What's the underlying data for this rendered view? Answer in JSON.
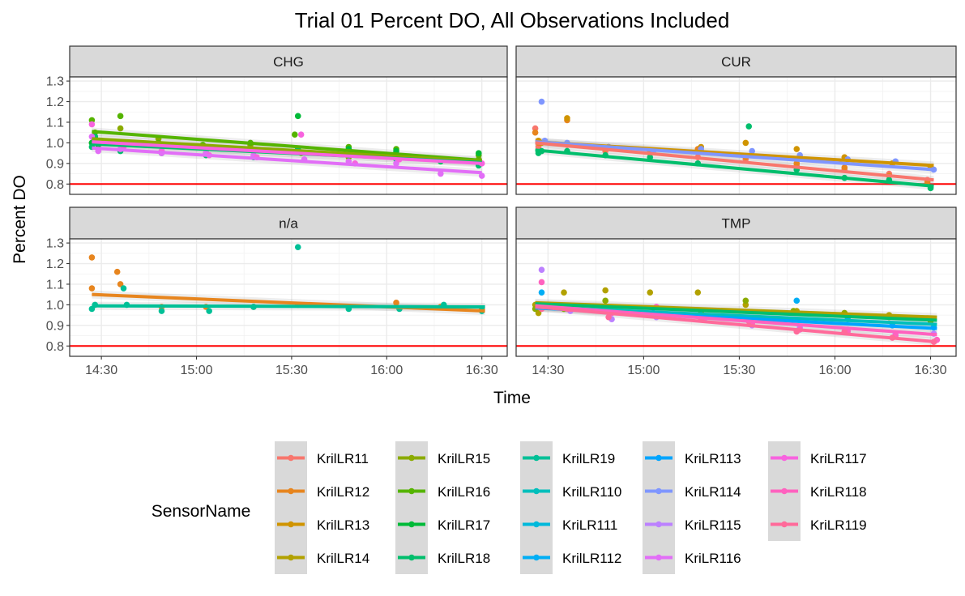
{
  "chart_data": {
    "type": "scatter",
    "title": "Trial 01 Percent DO, All Observations Included",
    "xlabel": "Time",
    "ylabel": "Percent DO",
    "x_unit": "minutes since 14:00",
    "x_ticks": [
      {
        "value": 30,
        "label": "14:30"
      },
      {
        "value": 60,
        "label": "15:00"
      },
      {
        "value": 90,
        "label": "15:30"
      },
      {
        "value": 120,
        "label": "16:00"
      },
      {
        "value": 150,
        "label": "16:30"
      }
    ],
    "y_ticks": [
      0.8,
      0.9,
      1.0,
      1.1,
      1.2,
      1.3
    ],
    "ylim": [
      0.75,
      1.32
    ],
    "xlim": [
      20,
      158
    ],
    "reference_line": {
      "y": 0.8,
      "color": "#ff0000"
    },
    "grid": true,
    "legend": {
      "title": "SensorName",
      "position": "bottom",
      "entries": [
        {
          "name": "KrilLR11",
          "color": "#F8766D"
        },
        {
          "name": "KrilLR12",
          "color": "#E7851E"
        },
        {
          "name": "KrilLR13",
          "color": "#D09400"
        },
        {
          "name": "KrilLR14",
          "color": "#B2A100"
        },
        {
          "name": "KrilLR15",
          "color": "#8BAB00"
        },
        {
          "name": "KrilLR16",
          "color": "#55B400"
        },
        {
          "name": "KrilLR17",
          "color": "#00BA38"
        },
        {
          "name": "KrilLR18",
          "color": "#00BE6C"
        },
        {
          "name": "KrilLR19",
          "color": "#00C097"
        },
        {
          "name": "KrilLR110",
          "color": "#00BFBC"
        },
        {
          "name": "KriLR111",
          "color": "#00B9DB"
        },
        {
          "name": "KrilLR112",
          "color": "#00AEF5"
        },
        {
          "name": "KriLR113",
          "color": "#00A5FF"
        },
        {
          "name": "KriLR114",
          "color": "#7F96FF"
        },
        {
          "name": "KriLR115",
          "color": "#BC81FF"
        },
        {
          "name": "KriLR116",
          "color": "#E26EF7"
        },
        {
          "name": "KriLR117",
          "color": "#F863DF"
        },
        {
          "name": "KriLR118",
          "color": "#FF62BF"
        },
        {
          "name": "KriLR119",
          "color": "#FF6A9A"
        }
      ]
    },
    "panels": [
      {
        "label": "CHG",
        "series": [
          {
            "color": "#8BAB00",
            "x": [
              27,
              28,
              36,
              48,
              62,
              77,
              93,
              108,
              123,
              137,
              149
            ],
            "y": [
              1.0,
              1.02,
              1.07,
              1.02,
              0.98,
              0.99,
              0.95,
              0.93,
              0.93,
              0.91,
              0.92
            ]
          },
          {
            "color": "#55B400",
            "x": [
              27,
              28,
              36,
              48,
              62,
              77,
              91,
              108,
              123,
              137,
              149
            ],
            "y": [
              1.11,
              1.05,
              1.13,
              1.0,
              0.99,
              1.0,
              1.04,
              0.98,
              0.97,
              0.92,
              0.94
            ]
          },
          {
            "color": "#00BA38",
            "x": [
              27,
              29,
              36,
              49,
              63,
              78,
              92,
              108,
              123,
              137,
              149
            ],
            "y": [
              1.0,
              0.99,
              1.0,
              0.96,
              0.95,
              0.96,
              1.13,
              0.97,
              0.96,
              0.92,
              0.95
            ]
          },
          {
            "color": "#00BE6C",
            "x": [
              27,
              28,
              36,
              49,
              63,
              78,
              92,
              108,
              123,
              137,
              149
            ],
            "y": [
              0.98,
              1.03,
              0.96,
              0.95,
              0.94,
              0.93,
              0.97,
              0.94,
              0.92,
              0.91,
              0.89
            ]
          },
          {
            "color": "#E26EF7",
            "x": [
              27,
              29,
              36,
              49,
              63,
              78,
              94,
              108,
              123,
              137,
              150
            ],
            "y": [
              1.03,
              0.96,
              0.97,
              0.95,
              0.95,
              0.94,
              0.92,
              0.91,
              0.9,
              0.85,
              0.84
            ]
          },
          {
            "color": "#F863DF",
            "x": [
              27,
              29,
              37,
              49,
              64,
              79,
              93,
              110,
              124,
              138,
              150
            ],
            "y": [
              1.09,
              1.0,
              0.98,
              0.96,
              0.94,
              0.93,
              1.04,
              0.9,
              0.92,
              0.92,
              0.9
            ]
          }
        ],
        "fits": [
          {
            "color": "#55B400",
            "x1": 27,
            "y1": 1.055,
            "x2": 150,
            "y2": 0.915
          },
          {
            "color": "#8BAB00",
            "x1": 27,
            "y1": 1.02,
            "x2": 150,
            "y2": 0.91
          },
          {
            "color": "#00BE6C",
            "x1": 27,
            "y1": 0.995,
            "x2": 150,
            "y2": 0.905
          },
          {
            "color": "#E26EF7",
            "x1": 27,
            "y1": 0.975,
            "x2": 150,
            "y2": 0.855
          },
          {
            "color": "#F863DF",
            "x1": 27,
            "y1": 1.005,
            "x2": 150,
            "y2": 0.9
          }
        ]
      },
      {
        "label": "CUR",
        "series": [
          {
            "color": "#F8766D",
            "x": [
              26,
              27,
              36,
              48,
              62,
              77,
              92,
              108,
              123,
              137,
              149
            ],
            "y": [
              1.07,
              0.98,
              0.99,
              0.96,
              0.95,
              0.93,
              0.92,
              0.89,
              0.87,
              0.85,
              0.82
            ]
          },
          {
            "color": "#E7851E",
            "x": [
              26,
              27,
              36,
              48,
              62,
              77,
              92,
              108,
              123,
              137,
              149
            ],
            "y": [
              1.05,
              1.0,
              1.11,
              0.97,
              0.96,
              0.97,
              0.93,
              0.9,
              0.88,
              0.84,
              0.81
            ]
          },
          {
            "color": "#D09400",
            "x": [
              27,
              28,
              36,
              49,
              63,
              78,
              92,
              108,
              123,
              138,
              150
            ],
            "y": [
              1.01,
              1.0,
              1.12,
              0.98,
              0.96,
              0.98,
              1.0,
              0.97,
              0.93,
              0.9,
              0.88
            ]
          },
          {
            "color": "#00BE6C",
            "x": [
              27,
              28,
              36,
              48,
              62,
              77,
              93,
              108,
              123,
              137,
              150
            ],
            "y": [
              0.95,
              0.96,
              0.96,
              0.94,
              0.93,
              0.9,
              1.08,
              0.87,
              0.83,
              0.82,
              0.78
            ]
          },
          {
            "color": "#7F96FF",
            "x": [
              28,
              29,
              36,
              49,
              63,
              78,
              94,
              109,
              124,
              139,
              151
            ],
            "y": [
              1.2,
              1.01,
              1.0,
              0.98,
              0.96,
              0.97,
              0.96,
              0.94,
              0.92,
              0.91,
              0.87
            ]
          }
        ],
        "fits": [
          {
            "color": "#D09400",
            "x1": 26,
            "y1": 1.005,
            "x2": 151,
            "y2": 0.89
          },
          {
            "color": "#7F96FF",
            "x1": 26,
            "y1": 1.005,
            "x2": 151,
            "y2": 0.87
          },
          {
            "color": "#F8766D",
            "x1": 26,
            "y1": 1.0,
            "x2": 151,
            "y2": 0.82
          },
          {
            "color": "#00BE6C",
            "x1": 26,
            "y1": 0.965,
            "x2": 151,
            "y2": 0.79
          }
        ]
      },
      {
        "label": "n/a",
        "series": [
          {
            "color": "#E7851E",
            "x": [
              27,
              27,
              35,
              36,
              49,
              63,
              78,
              92,
              108,
              123,
              137,
              150
            ],
            "y": [
              1.23,
              1.08,
              1.16,
              1.1,
              0.99,
              0.99,
              0.99,
              1.0,
              0.99,
              1.01,
              0.99,
              0.98
            ]
          },
          {
            "color": "#00C097",
            "x": [
              27,
              28,
              37,
              38,
              49,
              64,
              78,
              92,
              108,
              124,
              138,
              150
            ],
            "y": [
              0.98,
              1.0,
              1.08,
              1.0,
              0.97,
              0.97,
              0.99,
              1.28,
              0.98,
              0.98,
              1.0,
              0.97
            ]
          }
        ],
        "fits": [
          {
            "color": "#E7851E",
            "x1": 27,
            "y1": 1.05,
            "x2": 151,
            "y2": 0.97
          },
          {
            "color": "#00C097",
            "x1": 27,
            "y1": 0.995,
            "x2": 151,
            "y2": 0.99
          }
        ]
      },
      {
        "label": "TMP",
        "series": [
          {
            "color": "#B2A100",
            "x": [
              26,
              27,
              35,
              48,
              62,
              77,
              92,
              108,
              123,
              137,
              150
            ],
            "y": [
              1.0,
              0.96,
              1.06,
              1.07,
              1.06,
              1.06,
              1.0,
              0.97,
              0.96,
              0.95,
              0.93
            ]
          },
          {
            "color": "#8BAB00",
            "x": [
              26,
              27,
              35,
              48,
              63,
              78,
              92,
              107,
              123,
              137,
              150
            ],
            "y": [
              0.98,
              1.0,
              0.98,
              1.02,
              0.95,
              0.96,
              1.02,
              0.97,
              0.96,
              0.94,
              0.92
            ]
          },
          {
            "color": "#00AEF5",
            "x": [
              28,
              29,
              36,
              49,
              63,
              78,
              93,
              108,
              124,
              138,
              151
            ],
            "y": [
              1.06,
              1.0,
              0.99,
              0.97,
              0.96,
              0.95,
              0.93,
              1.02,
              0.93,
              0.9,
              0.89
            ]
          },
          {
            "color": "#BC81FF",
            "x": [
              28,
              29,
              37,
              50,
              64,
              79,
              94,
              109,
              124,
              139,
              151
            ],
            "y": [
              1.17,
              0.99,
              0.97,
              0.93,
              0.94,
              0.93,
              0.9,
              0.89,
              0.88,
              0.86,
              0.86
            ]
          },
          {
            "color": "#FF62BF",
            "x": [
              28,
              29,
              37,
              50,
              64,
              79,
              94,
              109,
              124,
              139,
              152
            ],
            "y": [
              1.11,
              1.0,
              0.98,
              0.96,
              0.99,
              0.94,
              0.91,
              0.88,
              0.87,
              0.85,
              0.83
            ]
          },
          {
            "color": "#FF6A9A",
            "x": [
              27,
              28,
              36,
              49,
              63,
              78,
              93,
              108,
              123,
              138,
              151
            ],
            "y": [
              0.99,
              0.98,
              0.98,
              0.94,
              0.95,
              0.93,
              0.92,
              0.87,
              0.87,
              0.84,
              0.82
            ]
          }
        ],
        "fits": [
          {
            "color": "#B2A100",
            "x1": 26,
            "y1": 1.01,
            "x2": 152,
            "y2": 0.94
          },
          {
            "color": "#00BE6C",
            "x1": 26,
            "y1": 1.005,
            "x2": 152,
            "y2": 0.925
          },
          {
            "color": "#00BFBC",
            "x1": 26,
            "y1": 0.99,
            "x2": 152,
            "y2": 0.905
          },
          {
            "color": "#00A5FF",
            "x1": 26,
            "y1": 0.985,
            "x2": 152,
            "y2": 0.885
          },
          {
            "color": "#FF62BF",
            "x1": 26,
            "y1": 0.995,
            "x2": 152,
            "y2": 0.855
          },
          {
            "color": "#FF6A9A",
            "x1": 26,
            "y1": 0.99,
            "x2": 152,
            "y2": 0.82
          }
        ]
      }
    ]
  }
}
